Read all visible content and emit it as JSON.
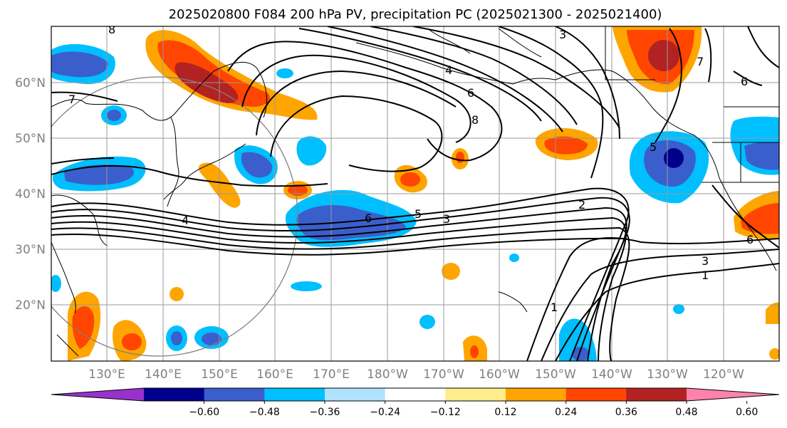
{
  "title": "2025020800 F084 200 hPa PV, precipitation PC (2025021300 - 2025021400)",
  "lat_labels": [
    "60°N",
    "50°N",
    "40°N",
    "30°N",
    "20°N"
  ],
  "lon_labels": [
    "130°E",
    "140°E",
    "150°E",
    "160°E",
    "170°E",
    "180°W",
    "170°W",
    "160°W",
    "150°W",
    "140°W",
    "130°W",
    "120°W"
  ],
  "colorbar": {
    "colors": [
      "#9932cc",
      "#00008b",
      "#3a5fcd",
      "#00bfff",
      "#b0e2ff",
      "#ffffff",
      "#ffec8b",
      "#ffa500",
      "#ff4500",
      "#b22222",
      "#ff82ab"
    ],
    "tick_labels": [
      "−0.60",
      "−0.48",
      "−0.36",
      "−0.24",
      "−0.12",
      "0.12",
      "0.24",
      "0.36",
      "0.48",
      "0.60"
    ]
  },
  "contour_labels": [
    "8",
    "7",
    "4",
    "6",
    "5",
    "3",
    "2",
    "3",
    "1",
    "1",
    "3",
    "4",
    "6",
    "8",
    "5",
    "6",
    "7",
    "6"
  ]
}
